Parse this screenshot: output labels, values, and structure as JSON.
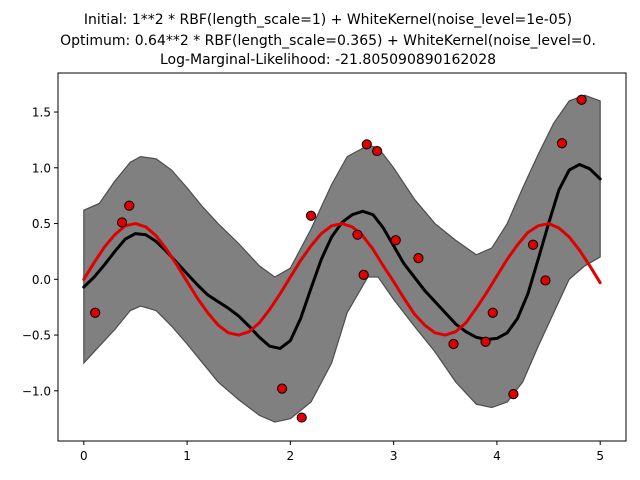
{
  "chart_data": {
    "type": "line",
    "title_lines": [
      "Initial: 1**2 * RBF(length_scale=1) + WhiteKernel(noise_level=1e-05)",
      "Optimum: 0.64**2 * RBF(length_scale=0.365) + WhiteKernel(noise_level=0.",
      "Log-Marginal-Likelihood: -21.805090890162028"
    ],
    "xlabel": "",
    "ylabel": "",
    "xlim": [
      -0.25,
      5.25
    ],
    "ylim": [
      -1.45,
      1.85
    ],
    "xticks": [
      0,
      1,
      2,
      3,
      4,
      5
    ],
    "yticks": [
      -1.0,
      -0.5,
      0.0,
      0.5,
      1.0,
      1.5
    ],
    "grid": false,
    "colors": {
      "mean": "#000000",
      "band": "#808080",
      "band_edge": "#4d4d4d",
      "true_function": "#e00000",
      "points": "#e00000"
    },
    "series": [
      {
        "kind": "band",
        "x": [
          0,
          0.15,
          0.3,
          0.45,
          0.55,
          0.7,
          0.85,
          1.0,
          1.15,
          1.3,
          1.5,
          1.7,
          1.85,
          2.0,
          2.2,
          2.4,
          2.55,
          2.75,
          2.85,
          3.0,
          3.2,
          3.4,
          3.6,
          3.8,
          3.95,
          4.1,
          4.25,
          4.4,
          4.55,
          4.7,
          4.85,
          5.0
        ],
        "upper": [
          0.62,
          0.68,
          0.88,
          1.05,
          1.1,
          1.08,
          0.98,
          0.82,
          0.65,
          0.5,
          0.32,
          0.12,
          0.02,
          0.1,
          0.45,
          0.85,
          1.1,
          1.2,
          1.18,
          1.0,
          0.72,
          0.5,
          0.35,
          0.22,
          0.28,
          0.5,
          0.82,
          1.12,
          1.4,
          1.6,
          1.65,
          1.6
        ],
        "lower": [
          -0.75,
          -0.6,
          -0.45,
          -0.28,
          -0.24,
          -0.28,
          -0.42,
          -0.58,
          -0.75,
          -0.92,
          -1.08,
          -1.22,
          -1.28,
          -1.25,
          -1.1,
          -0.75,
          -0.3,
          0.02,
          0.02,
          -0.18,
          -0.42,
          -0.65,
          -0.92,
          -1.12,
          -1.15,
          -1.1,
          -0.92,
          -0.6,
          -0.3,
          0.0,
          0.12,
          0.2
        ]
      },
      {
        "kind": "line",
        "x": [
          0,
          0.1,
          0.2,
          0.3,
          0.4,
          0.5,
          0.6,
          0.7,
          0.8,
          0.9,
          1.0,
          1.1,
          1.2,
          1.3,
          1.4,
          1.5,
          1.6,
          1.7,
          1.8,
          1.9,
          2.0,
          2.1,
          2.2,
          2.3,
          2.4,
          2.5,
          2.6,
          2.7,
          2.8,
          2.9,
          3.0,
          3.1,
          3.2,
          3.3,
          3.4,
          3.5,
          3.6,
          3.7,
          3.8,
          3.9,
          4.0,
          4.1,
          4.2,
          4.3,
          4.4,
          4.5,
          4.6,
          4.7,
          4.8,
          4.9,
          5.0
        ],
        "values": [
          -0.07,
          0.02,
          0.13,
          0.25,
          0.36,
          0.41,
          0.4,
          0.34,
          0.25,
          0.15,
          0.05,
          -0.05,
          -0.14,
          -0.2,
          -0.26,
          -0.33,
          -0.42,
          -0.52,
          -0.6,
          -0.62,
          -0.55,
          -0.35,
          -0.08,
          0.18,
          0.38,
          0.51,
          0.58,
          0.61,
          0.58,
          0.46,
          0.3,
          0.14,
          0.02,
          -0.1,
          -0.2,
          -0.3,
          -0.4,
          -0.47,
          -0.52,
          -0.54,
          -0.53,
          -0.48,
          -0.35,
          -0.13,
          0.18,
          0.5,
          0.8,
          0.98,
          1.03,
          0.99,
          0.9
        ]
      },
      {
        "kind": "line",
        "x": [
          0,
          0.1,
          0.2,
          0.3,
          0.4,
          0.5,
          0.6,
          0.7,
          0.8,
          0.9,
          1.0,
          1.1,
          1.2,
          1.3,
          1.4,
          1.5,
          1.6,
          1.7,
          1.8,
          1.9,
          2.0,
          2.1,
          2.2,
          2.3,
          2.4,
          2.5,
          2.6,
          2.7,
          2.8,
          2.9,
          3.0,
          3.1,
          3.2,
          3.3,
          3.4,
          3.5,
          3.6,
          3.7,
          3.8,
          3.9,
          4.0,
          4.1,
          4.2,
          4.3,
          4.4,
          4.5,
          4.6,
          4.7,
          4.8,
          4.9,
          5.0
        ],
        "values": [
          0.0,
          0.15,
          0.29,
          0.4,
          0.48,
          0.5,
          0.47,
          0.39,
          0.27,
          0.13,
          -0.02,
          -0.17,
          -0.3,
          -0.41,
          -0.48,
          -0.5,
          -0.47,
          -0.39,
          -0.27,
          -0.13,
          0.02,
          0.17,
          0.3,
          0.41,
          0.48,
          0.5,
          0.47,
          0.39,
          0.27,
          0.12,
          -0.02,
          -0.17,
          -0.31,
          -0.41,
          -0.48,
          -0.5,
          -0.47,
          -0.39,
          -0.26,
          -0.12,
          0.03,
          0.18,
          0.31,
          0.42,
          0.48,
          0.5,
          0.46,
          0.38,
          0.26,
          0.12,
          -0.03
        ]
      },
      {
        "kind": "scatter",
        "x": [
          0.11,
          0.37,
          0.44,
          1.92,
          2.11,
          2.2,
          2.65,
          2.71,
          2.74,
          2.84,
          3.02,
          3.24,
          3.58,
          3.89,
          3.96,
          4.16,
          4.35,
          4.47,
          4.63,
          4.82
        ],
        "values": [
          -0.3,
          0.51,
          0.66,
          -0.98,
          -1.24,
          0.57,
          0.4,
          0.04,
          1.21,
          1.15,
          0.35,
          0.19,
          -0.58,
          -0.56,
          -0.3,
          -1.03,
          0.31,
          -0.01,
          1.22,
          1.61
        ]
      }
    ]
  }
}
